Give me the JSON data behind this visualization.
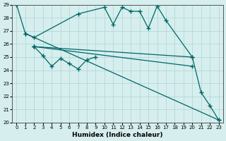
{
  "xlabel": "Humidex (Indice chaleur)",
  "bg_color": "#d6eeee",
  "grid_color": "#b0d4d4",
  "line_color": "#006666",
  "ylim": [
    20,
    29
  ],
  "xlim": [
    -0.5,
    23.5
  ],
  "lines": [
    {
      "x": [
        0,
        1,
        23
      ],
      "y": [
        29.0,
        26.8,
        20.2
      ]
    },
    {
      "x": [
        2,
        3,
        4,
        5,
        6,
        7,
        8,
        9
      ],
      "y": [
        25.8,
        25.1,
        24.3,
        24.9,
        24.5,
        24.1,
        24.8,
        25.0
      ]
    },
    {
      "x": [
        1,
        2,
        7,
        10,
        11,
        12,
        13,
        14,
        15,
        16,
        17,
        20,
        21,
        22,
        23
      ],
      "y": [
        26.8,
        26.5,
        28.3,
        28.8,
        27.5,
        28.8,
        28.5,
        28.5,
        27.2,
        28.9,
        27.8,
        25.0,
        22.3,
        21.3,
        20.2
      ]
    },
    {
      "x": [
        2,
        20
      ],
      "y": [
        25.8,
        25.0
      ]
    },
    {
      "x": [
        2,
        20
      ],
      "y": [
        25.8,
        24.3
      ]
    }
  ]
}
